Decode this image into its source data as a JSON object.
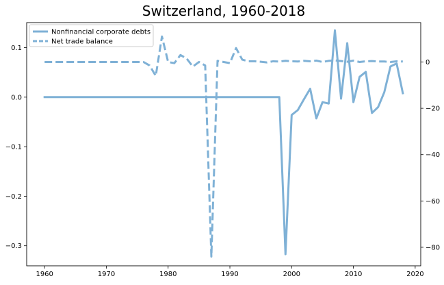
{
  "chart_data": {
    "type": "line",
    "title": "Switzerland, 1960-2018",
    "xlabel": "",
    "ylabel_left": "",
    "ylabel_right": "",
    "xlim": [
      1957.1,
      2020.9
    ],
    "ylim_left": [
      -0.3405,
      0.1505
    ],
    "ylim_right": [
      -88,
      17
    ],
    "x_ticks": [
      1960,
      1970,
      1980,
      1990,
      2000,
      2010,
      2020
    ],
    "y_left_ticks": [
      {
        "value": 0.1,
        "label": "0.1"
      },
      {
        "value": 0.0,
        "label": "0.0"
      },
      {
        "value": -0.1,
        "label": "−0.1"
      },
      {
        "value": -0.2,
        "label": "−0.2"
      },
      {
        "value": -0.3,
        "label": "−0.3"
      }
    ],
    "y_right_ticks": [
      {
        "value": 0,
        "label": "0"
      },
      {
        "value": -20,
        "label": "−20"
      },
      {
        "value": -40,
        "label": "−40"
      },
      {
        "value": -60,
        "label": "−60"
      },
      {
        "value": -80,
        "label": "−80"
      }
    ],
    "grid": false,
    "legend_position": "top-left",
    "series": [
      {
        "name": "Nonfinancial corporate debts",
        "axis": "left",
        "style": "solid",
        "color": "#7fb1d6",
        "x": [
          1960,
          1961,
          1962,
          1963,
          1964,
          1965,
          1966,
          1967,
          1968,
          1969,
          1970,
          1971,
          1972,
          1973,
          1974,
          1975,
          1976,
          1977,
          1978,
          1979,
          1980,
          1981,
          1982,
          1983,
          1984,
          1985,
          1986,
          1987,
          1988,
          1989,
          1990,
          1991,
          1992,
          1993,
          1994,
          1995,
          1996,
          1997,
          1998,
          1999,
          2000,
          2001,
          2002,
          2003,
          2004,
          2005,
          2006,
          2007,
          2008,
          2009,
          2010,
          2011,
          2012,
          2013,
          2014,
          2015,
          2016,
          2017,
          2018
        ],
        "y": [
          0,
          0,
          0,
          0,
          0,
          0,
          0,
          0,
          0,
          0,
          0,
          0,
          0,
          0,
          0,
          0,
          0,
          0,
          0,
          0,
          0,
          0,
          0,
          0,
          0,
          0,
          0,
          0,
          0,
          0,
          0,
          0,
          0,
          0,
          0,
          0,
          0,
          0,
          0,
          -0.317,
          -0.036,
          -0.026,
          -0.004,
          0.017,
          -0.043,
          -0.01,
          -0.013,
          0.135,
          -0.003,
          0.109,
          -0.01,
          0.041,
          0.051,
          -0.032,
          -0.02,
          0.01,
          0.062,
          0.068,
          0.008
        ]
      },
      {
        "name": "Net trade balance",
        "axis": "right",
        "style": "dashed",
        "color": "#7fb1d6",
        "x": [
          1960,
          1961,
          1962,
          1963,
          1964,
          1965,
          1966,
          1967,
          1968,
          1969,
          1970,
          1971,
          1972,
          1973,
          1974,
          1975,
          1976,
          1977,
          1978,
          1979,
          1980,
          1981,
          1982,
          1983,
          1984,
          1985,
          1986,
          1987,
          1988,
          1989,
          1990,
          1991,
          1992,
          1993,
          1994,
          1995,
          1996,
          1997,
          1998,
          1999,
          2000,
          2001,
          2002,
          2003,
          2004,
          2005,
          2006,
          2007,
          2008,
          2009,
          2010,
          2011,
          2012,
          2013,
          2014,
          2015,
          2016,
          2017,
          2018
        ],
        "y": [
          0,
          0,
          0,
          0,
          0,
          0,
          0,
          0,
          0,
          0,
          0,
          0,
          0,
          0,
          0,
          0,
          0,
          -1.5,
          -6,
          11,
          0,
          -0.5,
          3,
          1.5,
          -2,
          0,
          -1.5,
          -84,
          0.5,
          0,
          -0.5,
          6,
          1,
          0.3,
          0.3,
          0.1,
          -0.2,
          0.3,
          0.2,
          0.5,
          0.3,
          0.2,
          0.5,
          0.3,
          0.6,
          0,
          0.5,
          0.7,
          0.4,
          0.1,
          0.6,
          0,
          0.3,
          0.4,
          0.2,
          0.2,
          0,
          0.3,
          0.2
        ]
      }
    ]
  }
}
